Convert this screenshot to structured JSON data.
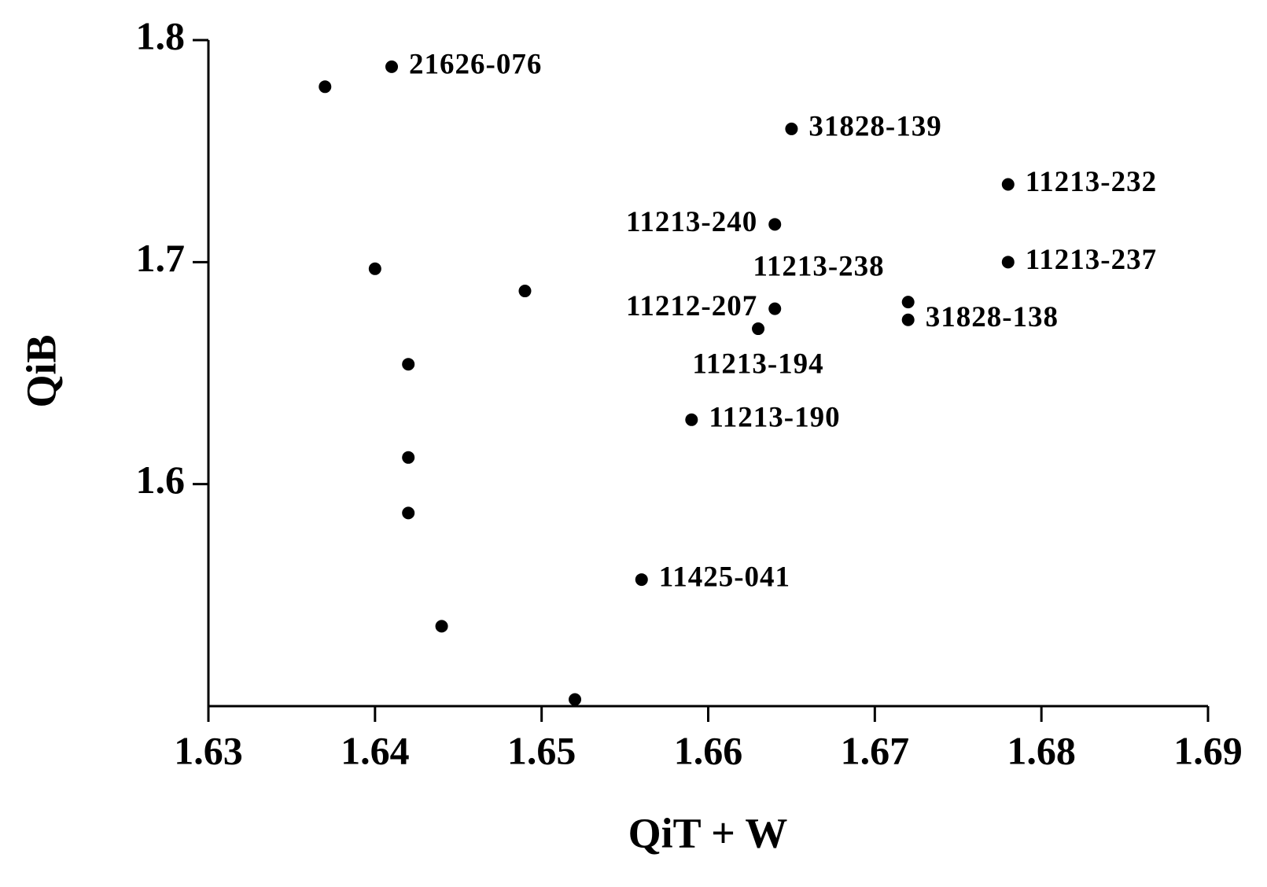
{
  "chart_data": {
    "type": "scatter",
    "x_label": "QiT + W",
    "y_label": "QiB",
    "x": [
      1.637,
      1.641,
      1.665,
      1.678,
      1.664,
      1.678,
      1.64,
      1.649,
      1.672,
      1.672,
      1.664,
      1.663,
      1.642,
      1.659,
      1.642,
      1.642,
      1.656,
      1.644,
      1.652
    ],
    "values": [
      1.779,
      1.788,
      1.76,
      1.735,
      1.717,
      1.7,
      1.697,
      1.687,
      1.682,
      1.674,
      1.679,
      1.67,
      1.654,
      1.629,
      1.612,
      1.587,
      1.557,
      1.536,
      1.503
    ],
    "point_labels": [
      null,
      "21626-076",
      "31828-139",
      "11213-232",
      "11213-240",
      "11213-237",
      null,
      null,
      "11213-238",
      "31828-138",
      "11212-207",
      "11213-194",
      null,
      "11213-190",
      null,
      null,
      "11425-041",
      null,
      null
    ],
    "color": "#000000",
    "xlim": [
      1.63,
      1.69
    ],
    "ylim": [
      1.5,
      1.8
    ],
    "xticks": [
      1.63,
      1.64,
      1.65,
      1.66,
      1.67,
      1.68,
      1.69
    ],
    "yticks": [
      1.6,
      1.7,
      1.8
    ]
  }
}
